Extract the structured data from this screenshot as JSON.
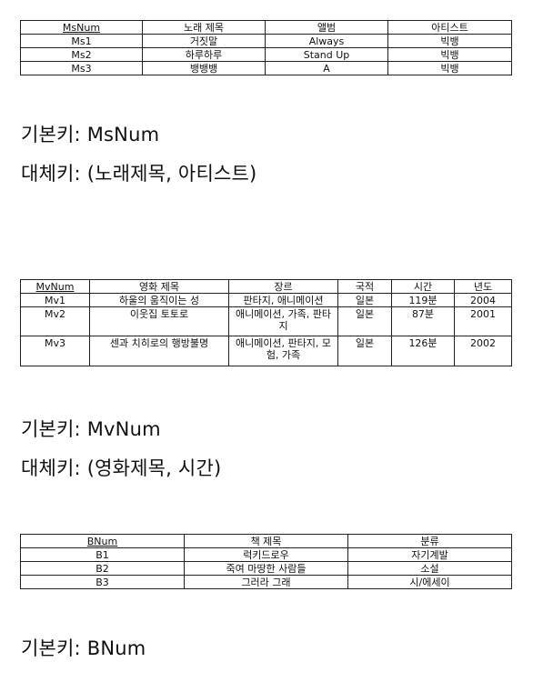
{
  "music": {
    "headers": [
      "MsNum",
      "노래 제목",
      "앨범",
      "아티스트"
    ],
    "rows": [
      [
        "Ms1",
        "거짓말",
        "Always",
        "빅뱅"
      ],
      [
        "Ms2",
        "하루하루",
        "Stand Up",
        "빅뱅"
      ],
      [
        "Ms3",
        "뱅뱅뱅",
        "A",
        "빅뱅"
      ]
    ],
    "primary_key": "기본키: MsNum",
    "candidate_key": "대체키: (노래제목, 아티스트)"
  },
  "movie": {
    "headers": [
      "MvNum",
      "영화 제목",
      "장르",
      "국적",
      "시간",
      "년도"
    ],
    "rows": [
      [
        "Mv1",
        "하울의 움직이는 성",
        "판타지, 애니메이션",
        "일본",
        "119분",
        "2004"
      ],
      [
        "Mv2",
        "이웃집 토토로",
        "애니메이션, 가족, 판타지",
        "일본",
        "87분",
        "2001"
      ],
      [
        "Mv3",
        "센과 치히로의 행방불명",
        "애니메이션, 판타지, 모험, 가족",
        "일본",
        "126분",
        "2002"
      ]
    ],
    "primary_key": "기본키: MvNum",
    "candidate_key": "대체키: (영화제목, 시간)"
  },
  "book": {
    "headers": [
      "BNum",
      "책 제목",
      "분류"
    ],
    "rows": [
      [
        "B1",
        "럭키드로우",
        "자기계발"
      ],
      [
        "B2",
        "죽여 마땅한 사람들",
        "소설"
      ],
      [
        "B3",
        "그러라 그래",
        "시/에세이"
      ]
    ],
    "primary_key": "기본키: BNum"
  }
}
